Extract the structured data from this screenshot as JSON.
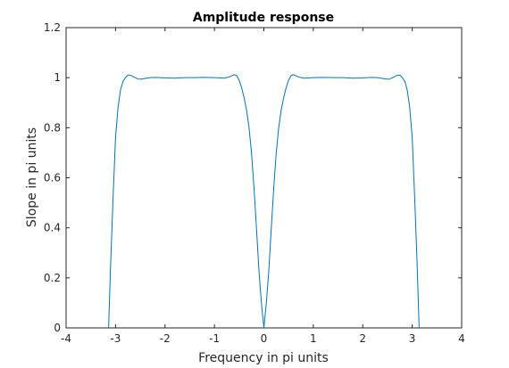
{
  "chart_data": {
    "type": "line",
    "title": "Amplitude response",
    "xlabel": "Frequency in pi units",
    "ylabel": "Slope in pi units",
    "xlim": [
      -4,
      4
    ],
    "ylim": [
      0,
      1.2
    ],
    "grid": false,
    "x_ticks": [
      "-4",
      "-3",
      "-2",
      "-1",
      "0",
      "1",
      "2",
      "3",
      "4"
    ],
    "y_ticks": [
      "0",
      "0.2",
      "0.4",
      "0.6",
      "0.8",
      "1",
      "1.2"
    ],
    "series": [
      {
        "color": "#0072bd",
        "x": [
          -3.14,
          -3.1,
          -3.05,
          -3.0,
          -2.95,
          -2.9,
          -2.85,
          -2.8,
          -2.75,
          -2.7,
          -2.65,
          -2.6,
          -2.55,
          -2.5,
          -2.4,
          -2.3,
          -2.2,
          -2.1,
          -2.0,
          -1.8,
          -1.6,
          -1.4,
          -1.2,
          -1.0,
          -0.8,
          -0.7,
          -0.6,
          -0.55,
          -0.5,
          -0.45,
          -0.4,
          -0.35,
          -0.3,
          -0.25,
          -0.2,
          -0.15,
          -0.1,
          -0.05,
          0.0,
          0.05,
          0.1,
          0.15,
          0.2,
          0.25,
          0.3,
          0.35,
          0.4,
          0.45,
          0.5,
          0.55,
          0.6,
          0.7,
          0.8,
          1.0,
          1.2,
          1.4,
          1.6,
          1.8,
          2.0,
          2.1,
          2.2,
          2.3,
          2.4,
          2.5,
          2.55,
          2.6,
          2.65,
          2.7,
          2.75,
          2.8,
          2.85,
          2.9,
          2.95,
          3.0,
          3.05,
          3.1,
          3.14
        ],
        "y": [
          0.0,
          0.25,
          0.52,
          0.76,
          0.88,
          0.95,
          0.985,
          1.0,
          1.01,
          1.01,
          1.005,
          1.0,
          0.995,
          0.994,
          0.997,
          1.0,
          1.001,
          1.0,
          0.999,
          0.998,
          1.0,
          1.0,
          1.001,
          1.0,
          0.998,
          1.003,
          1.012,
          1.008,
          0.99,
          0.96,
          0.92,
          0.87,
          0.8,
          0.7,
          0.56,
          0.4,
          0.23,
          0.1,
          0.0,
          0.1,
          0.23,
          0.4,
          0.56,
          0.7,
          0.8,
          0.87,
          0.92,
          0.96,
          0.99,
          1.008,
          1.012,
          1.003,
          0.998,
          1.0,
          1.001,
          1.0,
          1.0,
          0.998,
          0.999,
          1.0,
          1.001,
          1.0,
          0.997,
          0.994,
          0.995,
          1.0,
          1.005,
          1.01,
          1.01,
          1.0,
          0.985,
          0.95,
          0.88,
          0.76,
          0.52,
          0.25,
          0.0
        ]
      }
    ]
  }
}
